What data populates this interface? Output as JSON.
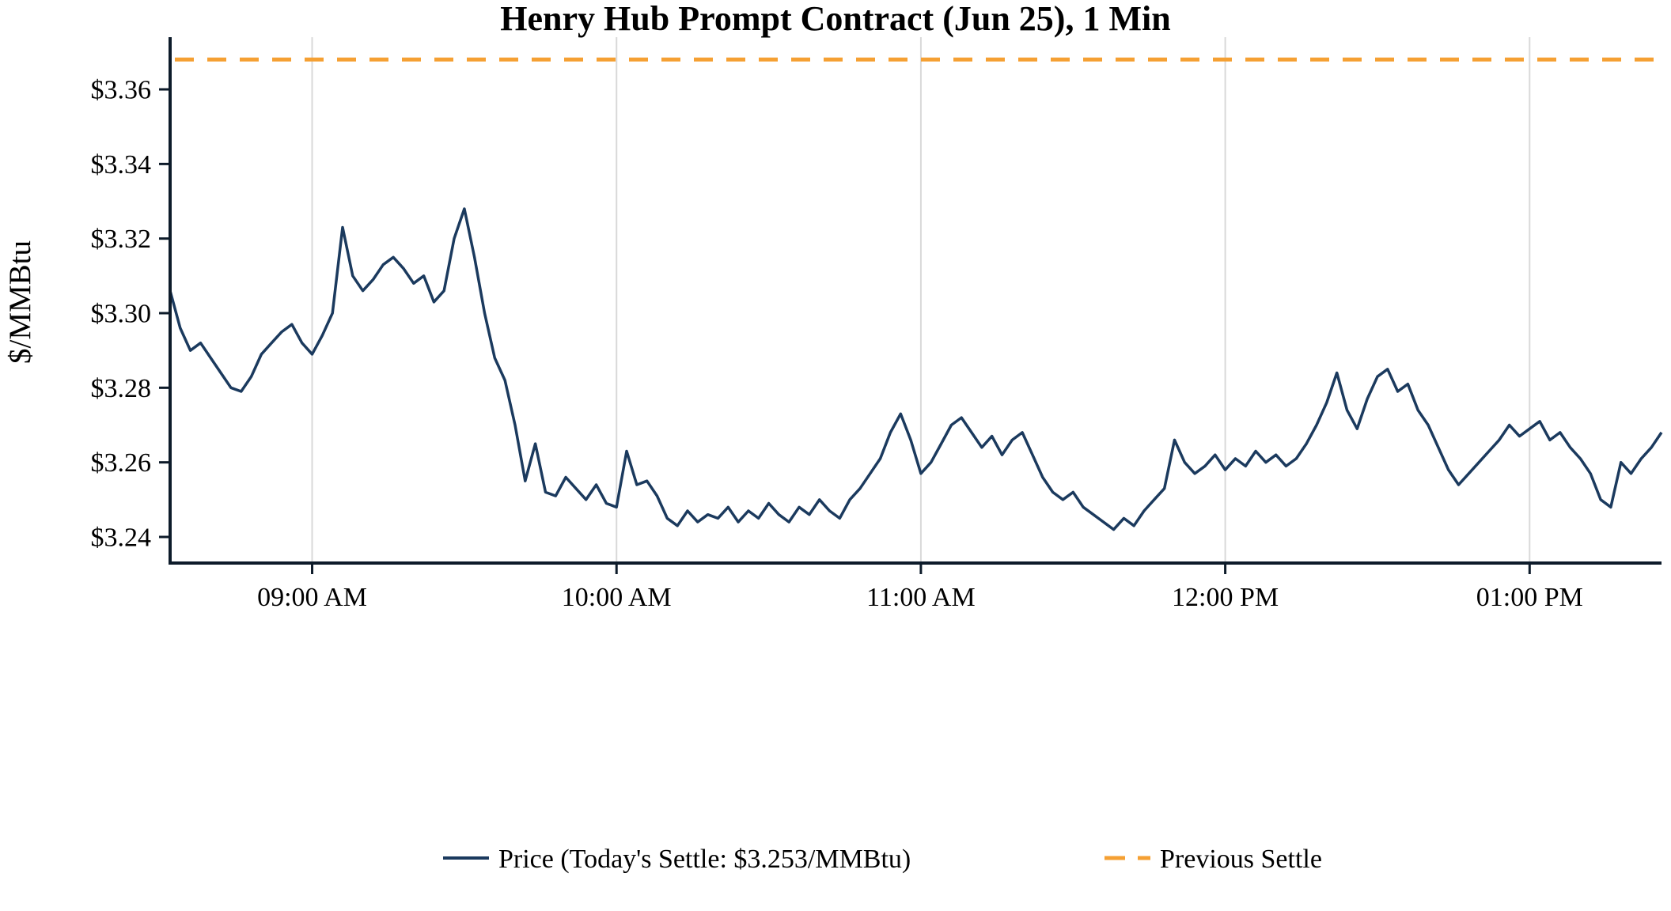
{
  "chart": {
    "title": "Henry Hub Prompt Contract (Jun 25), 1 Min",
    "ylabel": "$/MMBtu",
    "colors": {
      "price_line": "#1b3a5e",
      "previous_settle": "#f5a033",
      "grid": "#d9d9d9",
      "axis": "#0d1b2a",
      "text": "#000000",
      "background": "#ffffff"
    },
    "legend": [
      {
        "label": "Price (Today's Settle: $3.253/MMBtu)",
        "type": "solid-line",
        "color": "#1b3a5e"
      },
      {
        "label": "Previous Settle",
        "type": "dashed-line",
        "color": "#f5a033"
      }
    ]
  },
  "chart_data": {
    "type": "line",
    "title": "Henry Hub Prompt Contract (Jun 25), 1 Min",
    "xlabel": "",
    "ylabel": "$/MMBtu",
    "ylim": [
      3.233,
      3.374
    ],
    "grid": "vertical-only",
    "legend_position": "bottom",
    "x_unit": "minutes_since_midnight",
    "x_start": 512,
    "x_step": 2,
    "x_end": 806,
    "x_ticks": [
      {
        "t": 540,
        "label": "09:00 AM"
      },
      {
        "t": 600,
        "label": "10:00 AM"
      },
      {
        "t": 660,
        "label": "11:00 AM"
      },
      {
        "t": 720,
        "label": "12:00 PM"
      },
      {
        "t": 780,
        "label": "01:00 PM"
      }
    ],
    "y_ticks": [
      {
        "v": 3.24,
        "label": "$3.24"
      },
      {
        "v": 3.26,
        "label": "$3.26"
      },
      {
        "v": 3.28,
        "label": "$3.28"
      },
      {
        "v": 3.3,
        "label": "$3.30"
      },
      {
        "v": 3.32,
        "label": "$3.32"
      },
      {
        "v": 3.34,
        "label": "$3.34"
      },
      {
        "v": 3.36,
        "label": "$3.36"
      }
    ],
    "today_settle": 3.253,
    "previous_settle": {
      "name": "Previous Settle",
      "value": 3.368
    },
    "series": [
      {
        "name": "Price (Today's Settle: $3.253/MMBtu)",
        "values": [
          3.306,
          3.296,
          3.29,
          3.292,
          3.288,
          3.284,
          3.28,
          3.279,
          3.283,
          3.289,
          3.292,
          3.295,
          3.297,
          3.292,
          3.289,
          3.294,
          3.3,
          3.323,
          3.31,
          3.306,
          3.309,
          3.313,
          3.315,
          3.312,
          3.308,
          3.31,
          3.303,
          3.306,
          3.32,
          3.328,
          3.315,
          3.3,
          3.288,
          3.282,
          3.27,
          3.255,
          3.265,
          3.252,
          3.251,
          3.256,
          3.253,
          3.25,
          3.254,
          3.249,
          3.248,
          3.263,
          3.254,
          3.255,
          3.251,
          3.245,
          3.243,
          3.247,
          3.244,
          3.246,
          3.245,
          3.248,
          3.244,
          3.247,
          3.245,
          3.249,
          3.246,
          3.244,
          3.248,
          3.246,
          3.25,
          3.247,
          3.245,
          3.25,
          3.253,
          3.257,
          3.261,
          3.268,
          3.273,
          3.266,
          3.257,
          3.26,
          3.265,
          3.27,
          3.272,
          3.268,
          3.264,
          3.267,
          3.262,
          3.266,
          3.268,
          3.262,
          3.256,
          3.252,
          3.25,
          3.252,
          3.248,
          3.246,
          3.244,
          3.242,
          3.245,
          3.243,
          3.247,
          3.25,
          3.253,
          3.266,
          3.26,
          3.257,
          3.259,
          3.262,
          3.258,
          3.261,
          3.259,
          3.263,
          3.26,
          3.262,
          3.259,
          3.261,
          3.265,
          3.27,
          3.276,
          3.284,
          3.274,
          3.269,
          3.277,
          3.283,
          3.285,
          3.279,
          3.281,
          3.274,
          3.27,
          3.264,
          3.258,
          3.254,
          3.257,
          3.26,
          3.263,
          3.266,
          3.27,
          3.267,
          3.269,
          3.271,
          3.266,
          3.268,
          3.264,
          3.261,
          3.257,
          3.25,
          3.248,
          3.26,
          3.257,
          3.261,
          3.264,
          3.268
        ]
      }
    ]
  }
}
